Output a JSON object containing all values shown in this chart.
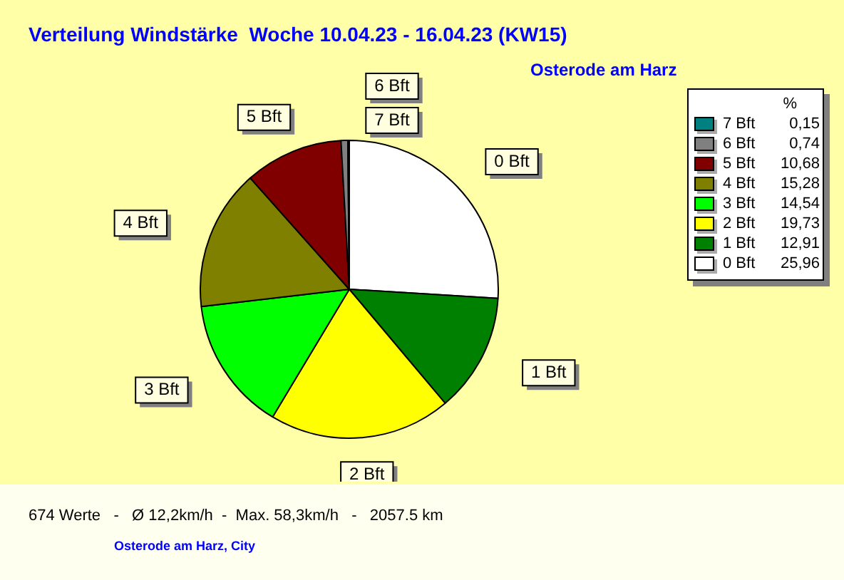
{
  "chart_data": {
    "type": "pie",
    "title": "Verteilung Windstärke  Woche 10.04.23 - 16.04.23 (KW15)",
    "subtitle": "Osterode am Harz",
    "legend_title": "%",
    "legend": "top right",
    "categories": [
      "0 Bft",
      "1 Bft",
      "2 Bft",
      "3 Bft",
      "4 Bft",
      "5 Bft",
      "6 Bft",
      "7 Bft"
    ],
    "values": [
      25.96,
      12.91,
      19.73,
      14.54,
      15.28,
      10.68,
      0.74,
      0.15
    ],
    "value_labels": [
      "25,96",
      "12,91",
      "19,73",
      "14,54",
      "15,28",
      "10,68",
      "0,74",
      "0,15"
    ],
    "colors": [
      "#ffffff",
      "#008000",
      "#ffff00",
      "#00ff00",
      "#808000",
      "#800000",
      "#808080",
      "#008080"
    ],
    "annotations": [
      "674 Werte   -   Ø 12,2km/h  -  Max. 58,3km/h   -   2057.5 km",
      "Osterode am Harz, City"
    ]
  }
}
